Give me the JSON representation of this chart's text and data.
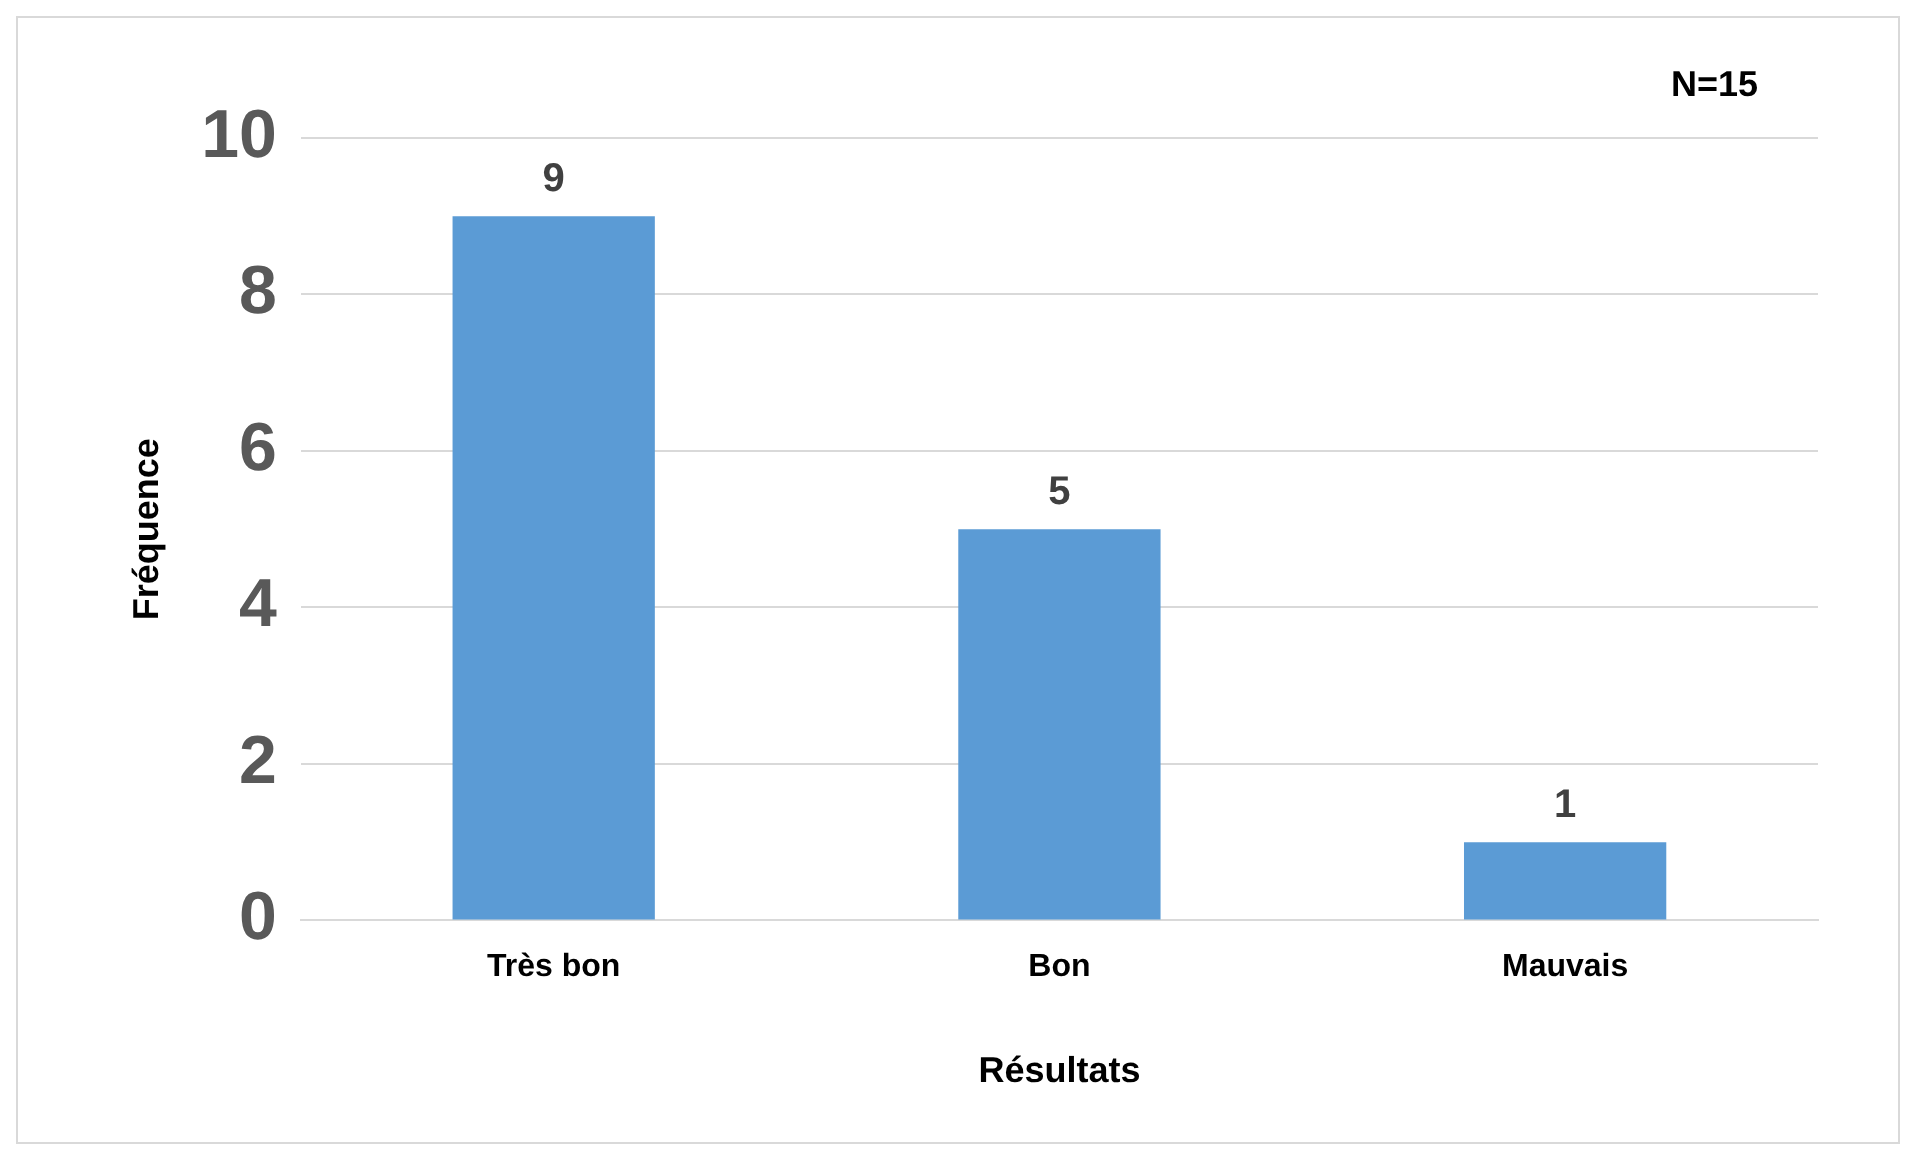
{
  "chart_data": {
    "type": "bar",
    "categories": [
      "Très bon",
      "Bon",
      "Mauvais"
    ],
    "values": [
      9,
      5,
      1
    ],
    "color": "#5b9bd5",
    "data_labels": true,
    "xlabel": "Résultats",
    "ylabel": "Fréquence",
    "ylim": [
      0,
      10
    ],
    "yticks": [
      0,
      2,
      4,
      6,
      8,
      10
    ],
    "grid": "y",
    "legend": false,
    "annotations": [
      "N=15"
    ]
  }
}
